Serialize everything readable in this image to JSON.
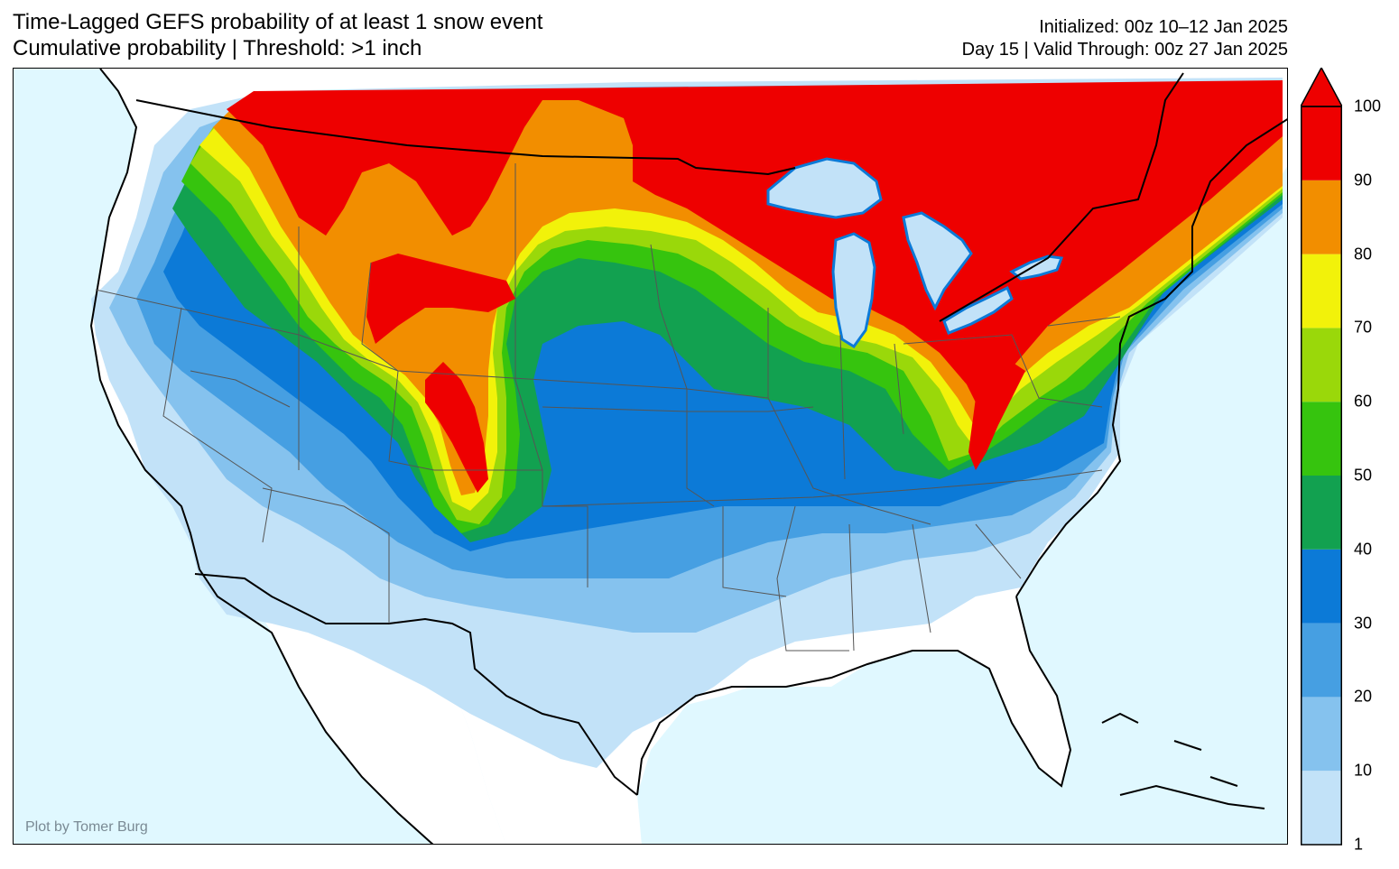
{
  "header": {
    "title_line1": "Time-Lagged GEFS probability of at least 1 snow event",
    "title_line2": "Cumulative probability | Threshold: >1 inch",
    "init_line": "Initialized: 00z 10–12 Jan 2025",
    "valid_line": "Day 15 | Valid Through: 00z 27 Jan 2025"
  },
  "credit": "Plot by Tomer Burg",
  "colorbar": {
    "ticks": [
      "1",
      "10",
      "20",
      "30",
      "40",
      "50",
      "60",
      "70",
      "80",
      "90",
      "100"
    ],
    "levels": [
      {
        "min": 1,
        "max": 10,
        "color": "#c2e2f8"
      },
      {
        "min": 10,
        "max": 20,
        "color": "#85c2ee"
      },
      {
        "min": 20,
        "max": 30,
        "color": "#469fe2"
      },
      {
        "min": 30,
        "max": 40,
        "color": "#0c7ad7"
      },
      {
        "min": 40,
        "max": 50,
        "color": "#12a150"
      },
      {
        "min": 50,
        "max": 60,
        "color": "#36c40e"
      },
      {
        "min": 60,
        "max": 70,
        "color": "#9ad80a"
      },
      {
        "min": 70,
        "max": 80,
        "color": "#f2f20a"
      },
      {
        "min": 80,
        "max": 90,
        "color": "#f28e00"
      },
      {
        "min": 90,
        "max": 100,
        "color": "#ee0000"
      }
    ],
    "extend_arrow": "max"
  },
  "colors": {
    "ocean": "#e0f8ff",
    "land_zero": "#ffffff",
    "border": "#000000",
    "state_line": "#555555"
  }
}
